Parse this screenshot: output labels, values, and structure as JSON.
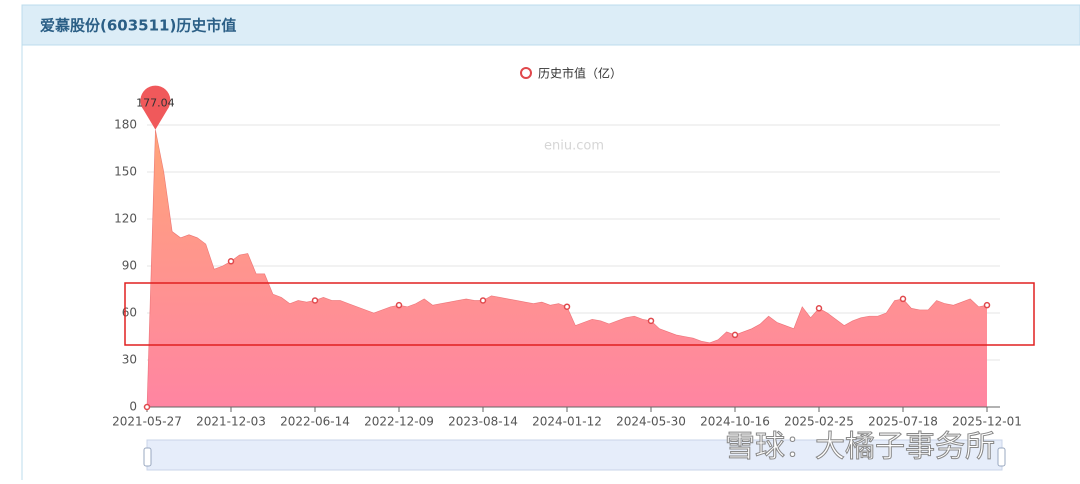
{
  "header": {
    "title": "爱慕股份(603511)历史市值"
  },
  "chart_data": {
    "type": "area",
    "watermark": "eniu.com",
    "credit": "雪球：大橘子事务所",
    "categories": [
      "2021-05-27",
      null,
      null,
      null,
      null,
      null,
      null,
      null,
      null,
      null,
      "2021-12-03",
      null,
      null,
      null,
      null,
      null,
      null,
      null,
      null,
      null,
      "2022-06-14",
      null,
      null,
      null,
      null,
      null,
      null,
      null,
      null,
      null,
      "2022-12-09",
      null,
      null,
      null,
      null,
      null,
      null,
      null,
      null,
      null,
      "2023-08-14",
      null,
      null,
      null,
      null,
      null,
      null,
      null,
      null,
      null,
      "2024-01-12",
      null,
      null,
      null,
      null,
      null,
      null,
      null,
      null,
      null,
      "2024-05-30",
      null,
      null,
      null,
      null,
      null,
      null,
      null,
      null,
      null,
      "2024-10-16",
      null,
      null,
      null,
      null,
      null,
      null,
      null,
      null,
      null,
      "2025-02-25",
      null,
      null,
      null,
      null,
      null,
      null,
      null,
      null,
      null,
      "2025-07-18",
      null,
      null,
      null,
      null,
      null,
      null,
      null,
      null,
      null,
      "2025-12-01"
    ],
    "series": [
      {
        "name": "历史市值（亿）",
        "color": "#e0484c",
        "area_gradient": [
          "#ffa47a",
          "#ff85a2"
        ],
        "values": [
          0,
          177.04,
          150,
          112,
          108,
          110,
          108,
          104,
          88,
          90,
          93,
          97,
          98,
          85,
          85,
          72,
          70,
          66,
          68,
          67,
          68,
          70,
          68,
          68,
          66,
          64,
          62,
          60,
          62,
          64,
          65,
          64,
          66,
          69,
          65,
          66,
          67,
          68,
          69,
          68,
          68,
          71,
          70,
          69,
          68,
          67,
          66,
          67,
          65,
          66,
          64,
          52,
          54,
          56,
          55,
          53,
          55,
          57,
          58,
          56,
          55,
          50,
          48,
          46,
          45,
          44,
          42,
          41,
          43,
          48,
          46,
          48,
          50,
          53,
          58,
          54,
          52,
          50,
          64,
          57,
          63,
          60,
          56,
          52,
          55,
          57,
          58,
          58,
          60,
          68,
          69,
          63,
          62,
          62,
          68,
          66,
          65,
          67,
          69,
          64,
          65
        ]
      }
    ],
    "ylim": [
      0,
      180
    ],
    "yticks": [
      0,
      30,
      60,
      90,
      120,
      150,
      180
    ],
    "grid": true
  }
}
